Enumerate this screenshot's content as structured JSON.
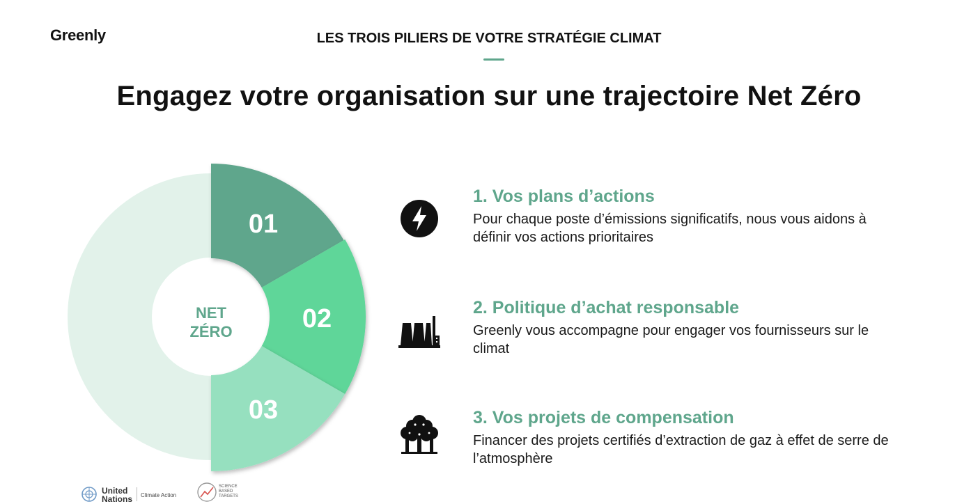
{
  "brand": {
    "logo_text": "Greenly"
  },
  "header": {
    "kicker": "LES TROIS PILIERS DE VOTRE STRATÉGIE CLIMAT",
    "headline": "Engagez votre organisation sur une trajectoire Net Zéro",
    "accent_color": "#5fa68c"
  },
  "diagram": {
    "center_label_line1": "NET",
    "center_label_line2": "ZÉRO",
    "background_ring_color": "#e2f2ea",
    "segments": [
      {
        "label": "01",
        "color": "#5fa68c"
      },
      {
        "label": "02",
        "color": "#5fd699"
      },
      {
        "label": "03",
        "color": "#96e0bf"
      }
    ]
  },
  "pillars": [
    {
      "icon": "lightning-bolt-icon",
      "title": "1. Vos plans d’actions",
      "description": "Pour chaque poste d’émissions significatifs, nous vous aidons à définir vos actions prioritaires"
    },
    {
      "icon": "factory-icon",
      "title": "2. Politique d’achat responsable",
      "description": "Greenly vous accompagne pour engager vos fournisseurs sur le climat"
    },
    {
      "icon": "trees-icon",
      "title": "3. Vos projets de compensation",
      "description": "Financer des projets certifiés d’extraction de gaz à effet de serre de l’atmosphère"
    }
  ],
  "footer": {
    "un_line1": "United",
    "un_line2": "Nations",
    "un_sub": "Climate Action",
    "sbt_line1": "SCIENCE",
    "sbt_line2": "BASED",
    "sbt_line3": "TARGETS"
  }
}
